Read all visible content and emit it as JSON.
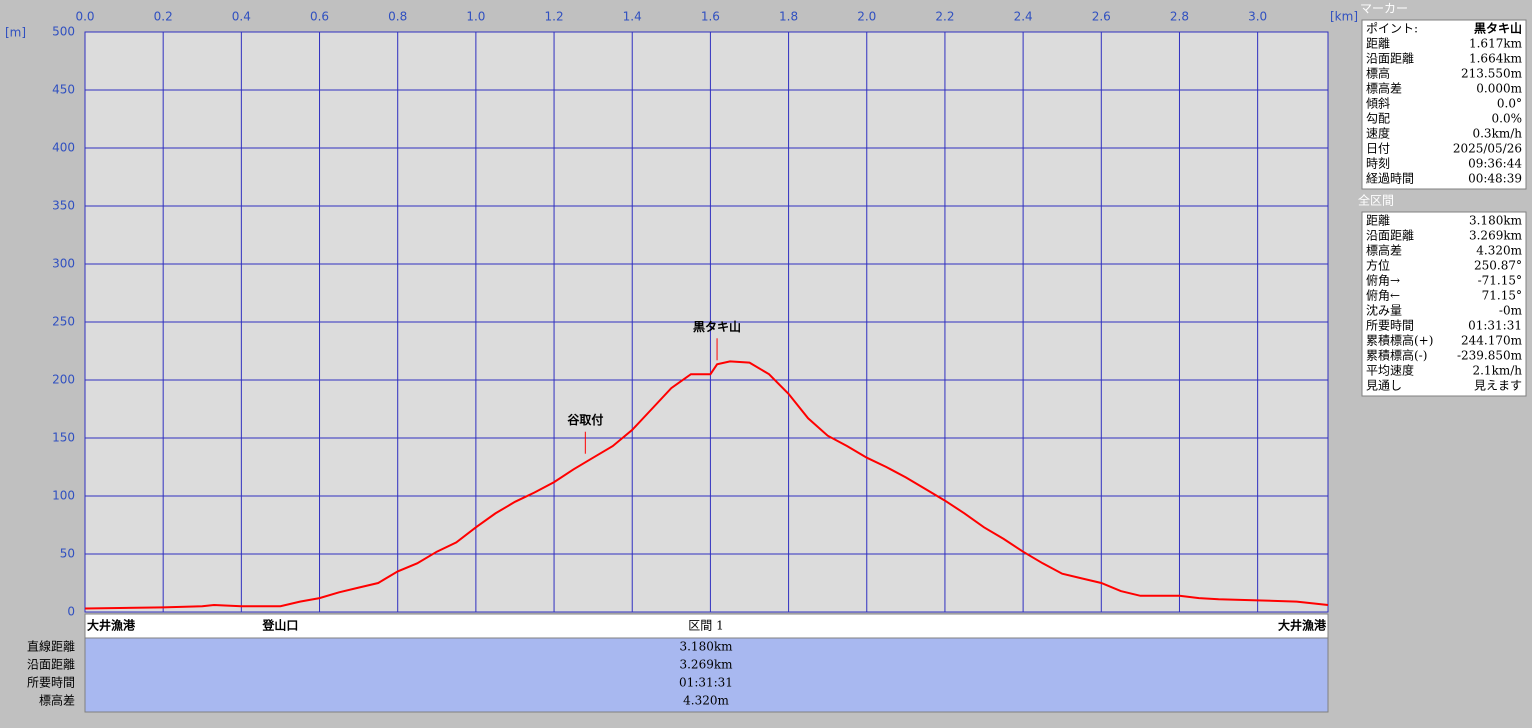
{
  "chart_data": {
    "type": "line",
    "x_unit": "[km]",
    "y_unit": "[m]",
    "xlim": [
      0,
      3.18
    ],
    "ylim": [
      0,
      500
    ],
    "xticks": [
      {
        "value": 0,
        "label": "0.0"
      },
      0.2,
      0.4,
      0.6,
      0.8,
      {
        "value": 1,
        "label": "1.0"
      },
      1.2,
      1.4,
      1.6,
      1.8,
      {
        "value": 2,
        "label": "2.0"
      },
      2.2,
      2.4,
      2.6,
      2.8,
      {
        "value": 3,
        "label": "3.0"
      }
    ],
    "yticks": [
      0,
      50,
      100,
      150,
      200,
      250,
      300,
      350,
      400,
      450,
      500
    ],
    "grid": true,
    "x": [
      0,
      0.2,
      0.3,
      0.33,
      0.4,
      0.5,
      0.55,
      0.6,
      0.65,
      0.7,
      0.75,
      0.8,
      0.85,
      0.9,
      0.95,
      1.0,
      1.05,
      1.1,
      1.15,
      1.2,
      1.25,
      1.3,
      1.35,
      1.4,
      1.45,
      1.5,
      1.55,
      1.6,
      1.617,
      1.65,
      1.7,
      1.75,
      1.8,
      1.85,
      1.9,
      1.95,
      2.0,
      2.05,
      2.1,
      2.15,
      2.2,
      2.25,
      2.3,
      2.35,
      2.4,
      2.45,
      2.5,
      2.55,
      2.6,
      2.65,
      2.7,
      2.75,
      2.8,
      2.85,
      2.9,
      3.0,
      3.1,
      3.18
    ],
    "series": [
      {
        "color": "#ff0000",
        "values": [
          3,
          4,
          5,
          6,
          5,
          5,
          9,
          12,
          17,
          21,
          25,
          35,
          42,
          52,
          60,
          73,
          85,
          95,
          103,
          112,
          123,
          133,
          143,
          157,
          175,
          193,
          205,
          205,
          213.55,
          216,
          215,
          205,
          188,
          167,
          152,
          143,
          133,
          125,
          116,
          106,
          96,
          85,
          73,
          63,
          52,
          42,
          33,
          29,
          25,
          18,
          14,
          14,
          14,
          12,
          11,
          10,
          9,
          6
        ]
      }
    ],
    "annotations": [
      {
        "text": "黒タキ山",
        "x": 1.617,
        "y": 213.55
      },
      {
        "text": "谷取付",
        "x": 1.28,
        "y": 133
      }
    ],
    "waypoints": [
      {
        "name": "大井漁港",
        "x": 0
      },
      {
        "name": "登山口",
        "x": 0.5
      },
      {
        "name": "大井漁港",
        "x": 3.18
      }
    ]
  },
  "section": {
    "label": "区間 1",
    "rows": [
      {
        "label": "直線距離",
        "value": "3.180km"
      },
      {
        "label": "沿面距離",
        "value": "3.269km"
      },
      {
        "label": "所要時間",
        "value": "01:31:31"
      },
      {
        "label": "標高差",
        "value": "4.320m"
      }
    ]
  },
  "marker_panel": {
    "title": "マーカー",
    "rows": [
      [
        "ポイント:",
        "黒タキ山"
      ],
      [
        "距離",
        "1.617km"
      ],
      [
        "沿面距離",
        "1.664km"
      ],
      [
        "標高",
        "213.550m"
      ],
      [
        "標高差",
        "0.000m"
      ],
      [
        "傾斜",
        "0.0°"
      ],
      [
        "勾配",
        "0.0%"
      ],
      [
        "速度",
        "0.3km/h"
      ],
      [
        "日付",
        "2025/05/26"
      ],
      [
        "時刻",
        "09:36:44"
      ],
      [
        "経過時間",
        "00:48:39"
      ]
    ]
  },
  "total_panel": {
    "title": "全区間",
    "rows": [
      [
        "距離",
        "3.180km"
      ],
      [
        "沿面距離",
        "3.269km"
      ],
      [
        "標高差",
        "4.320m"
      ],
      [
        "方位",
        "250.87°"
      ],
      [
        "俯角→",
        "-71.15°"
      ],
      [
        "俯角←",
        "71.15°"
      ],
      [
        "沈み量",
        "-0m"
      ],
      [
        "所要時間",
        "01:31:31"
      ],
      [
        "累積標高(+)",
        "244.170m"
      ],
      [
        "累積標高(-)",
        "-239.850m"
      ],
      [
        "平均速度",
        "2.1km/h"
      ],
      [
        "見通し",
        "見えます"
      ]
    ]
  }
}
